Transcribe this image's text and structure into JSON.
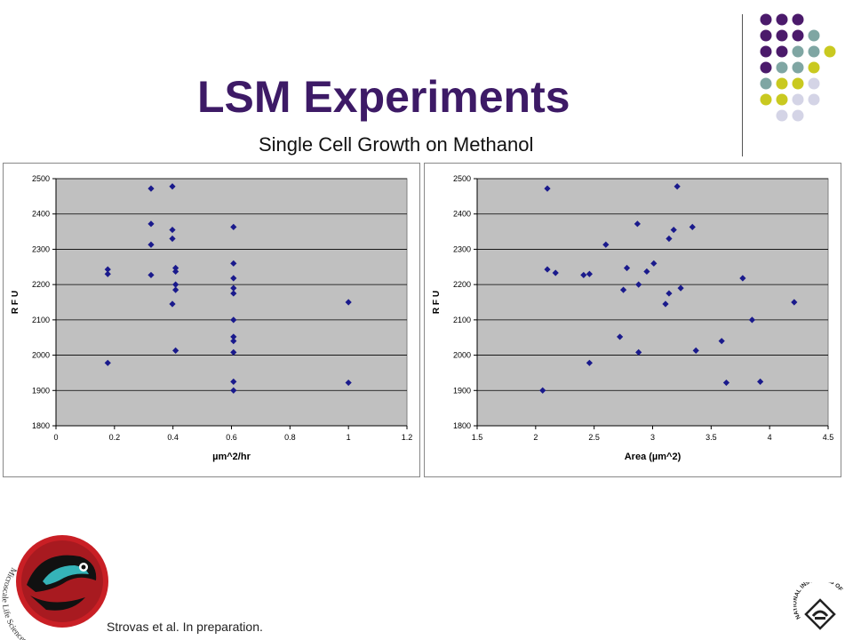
{
  "slide": {
    "title": "LSM Experiments",
    "subtitle": "Single Cell Growth on Methanol",
    "citation": "Strovas et al. In preparation.",
    "logo_text": "Microscale Life Sciences Center",
    "nih_text": "NATIONAL INSTITUTES OF HEALTH"
  },
  "colors": {
    "title": "#3d1a66",
    "marker": "#1a1a8c",
    "plot_area": "#c0c0c0",
    "dot_palette": [
      "#4b1a6b",
      "#7fa6a3",
      "#c9c920",
      "#d4d4e6"
    ]
  },
  "chart_data": [
    {
      "type": "scatter",
      "title": "",
      "xlabel": "µm^2/hr",
      "ylabel": "R F U",
      "xlim": [
        0,
        1.2
      ],
      "ylim": [
        1800,
        2500
      ],
      "xticks": [
        "0",
        "0.2",
        "0.4",
        "0.6",
        "0.8",
        "1",
        "1.2"
      ],
      "yticks": [
        "1800",
        "1900",
        "2000",
        "2100",
        "2200",
        "2300",
        "2400",
        "2500"
      ],
      "grid": true,
      "legend": "none",
      "series": [
        {
          "points": [
            [
              0.177,
              2243
            ],
            [
              0.177,
              2230
            ],
            [
              0.177,
              1978
            ],
            [
              0.325,
              2472
            ],
            [
              0.325,
              2372
            ],
            [
              0.325,
              2313
            ],
            [
              0.325,
              2227
            ],
            [
              0.398,
              2478
            ],
            [
              0.398,
              2355
            ],
            [
              0.398,
              2330
            ],
            [
              0.398,
              2145
            ],
            [
              0.409,
              2247
            ],
            [
              0.409,
              2237
            ],
            [
              0.409,
              2200
            ],
            [
              0.409,
              2185
            ],
            [
              0.409,
              2013
            ],
            [
              0.607,
              2363
            ],
            [
              0.607,
              2260
            ],
            [
              0.607,
              2218
            ],
            [
              0.607,
              2190
            ],
            [
              0.607,
              2175
            ],
            [
              0.607,
              2100
            ],
            [
              0.607,
              2052
            ],
            [
              0.607,
              2040
            ],
            [
              0.607,
              2008
            ],
            [
              0.607,
              1925
            ],
            [
              0.607,
              1900
            ],
            [
              1.0,
              2150
            ],
            [
              1.0,
              1922
            ]
          ]
        }
      ]
    },
    {
      "type": "scatter",
      "title": "",
      "xlabel": "Area (µm^2)",
      "ylabel": "R F U",
      "xlim": [
        1.5,
        4.5
      ],
      "ylim": [
        1800,
        2500
      ],
      "xticks": [
        "1.5",
        "2",
        "2.5",
        "3",
        "3.5",
        "4",
        "4.5"
      ],
      "yticks": [
        "1800",
        "1900",
        "2000",
        "2100",
        "2200",
        "2300",
        "2400",
        "2500"
      ],
      "grid": true,
      "legend": "none",
      "series": [
        {
          "points": [
            [
              2.1,
              2472
            ],
            [
              2.1,
              2243
            ],
            [
              2.06,
              1900
            ],
            [
              2.17,
              2233
            ],
            [
              2.41,
              2227
            ],
            [
              2.46,
              2230
            ],
            [
              2.46,
              1978
            ],
            [
              2.6,
              2313
            ],
            [
              2.72,
              2052
            ],
            [
              2.75,
              2185
            ],
            [
              2.78,
              2247
            ],
            [
              2.87,
              2372
            ],
            [
              2.88,
              2200
            ],
            [
              2.88,
              2008
            ],
            [
              2.95,
              2237
            ],
            [
              3.01,
              2260
            ],
            [
              3.11,
              2145
            ],
            [
              3.14,
              2330
            ],
            [
              3.14,
              2175
            ],
            [
              3.18,
              2355
            ],
            [
              3.21,
              2478
            ],
            [
              3.24,
              2190
            ],
            [
              3.34,
              2363
            ],
            [
              3.37,
              2013
            ],
            [
              3.59,
              2040
            ],
            [
              3.63,
              1922
            ],
            [
              3.77,
              2218
            ],
            [
              3.85,
              2100
            ],
            [
              3.92,
              1925
            ],
            [
              4.21,
              2150
            ]
          ]
        }
      ]
    }
  ]
}
